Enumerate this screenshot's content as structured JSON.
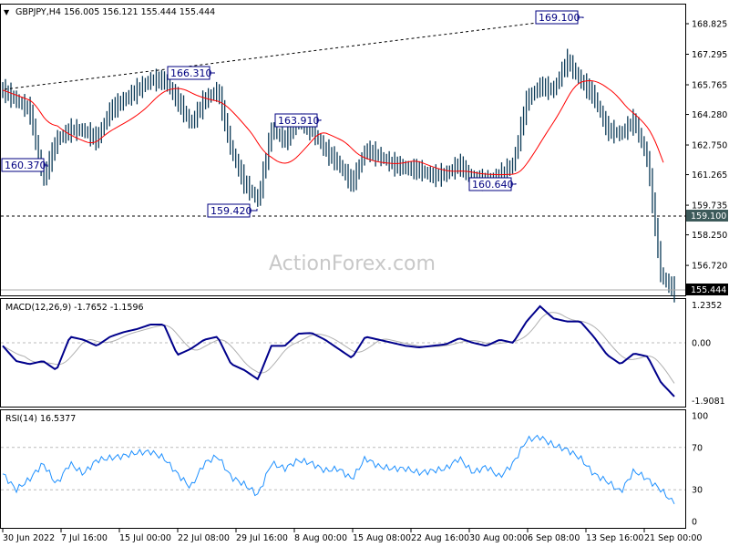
{
  "header": {
    "symbol": "GBPJPY,H4",
    "ohlc": "156.005 156.121 155.444 155.444",
    "full": "GBPJPY,H4  156.005 156.121 155.444 155.444"
  },
  "watermark": "ActionForex.com",
  "colors": {
    "bars": "#0b3a57",
    "ma": "#ff0000",
    "macd": "#00008b",
    "signal": "#b0b0b0",
    "rsi": "#1e90ff",
    "label_box": "#000080"
  },
  "chart_data": [
    {
      "type": "bar",
      "title": "GBPJPY,H4",
      "y_ticks": [
        "168.825",
        "167.295",
        "165.765",
        "164.280",
        "162.750",
        "161.265",
        "159.735",
        "158.250",
        "156.720"
      ],
      "y_tick_values": [
        168.825,
        167.295,
        165.765,
        164.28,
        162.75,
        161.265,
        159.735,
        158.25,
        156.72
      ],
      "ylim": [
        155.2,
        169.5
      ],
      "close": [
        165.5,
        165,
        164.5,
        161,
        163,
        163.5,
        163.5,
        163,
        164.5,
        165,
        165.5,
        166,
        166,
        165,
        163.8,
        165,
        165.5,
        162.5,
        160.8,
        160,
        163.5,
        163,
        164,
        163.5,
        162.5,
        161.8,
        160.8,
        162.5,
        162.2,
        161.8,
        161.6,
        161.5,
        161.2,
        161.3,
        161.8,
        161,
        161,
        161.2,
        161.8,
        165,
        165.7,
        165.5,
        167,
        166,
        165.2,
        163.5,
        163.3,
        164,
        162,
        156.2,
        155.444
      ],
      "annotations": [
        "169.100",
        "166.310",
        "163.910",
        "160.370",
        "159.420",
        "160.640"
      ],
      "horizontal_line": "159.100",
      "last_price": "155.444",
      "trendline": "dotted resistance from 30 Jun through 166.310 to 169.100"
    },
    {
      "type": "line",
      "title": "MACD(12,26,9) -1.7652 -1.1596",
      "y_ticks": [
        "1.2352",
        "0.00",
        "-1.9081"
      ],
      "ylim": [
        -1.9081,
        1.2352
      ],
      "macd": [
        -0.1,
        -0.6,
        -0.7,
        -0.6,
        -0.9,
        0.2,
        0.1,
        -0.1,
        0.2,
        0.35,
        0.45,
        0.6,
        0.6,
        -0.4,
        -0.2,
        0.1,
        0.2,
        -0.7,
        -0.9,
        -1.2,
        -0.1,
        -0.1,
        0.3,
        0.32,
        0.1,
        -0.2,
        -0.5,
        0.2,
        0.1,
        0.0,
        -0.1,
        -0.15,
        -0.1,
        -0.05,
        0.15,
        0.0,
        -0.1,
        0.1,
        0.0,
        0.7,
        1.2,
        0.8,
        0.7,
        0.7,
        0.2,
        -0.4,
        -0.7,
        -0.35,
        -0.45,
        -1.3,
        -1.7652
      ],
      "signal_last": -1.1596
    },
    {
      "type": "line",
      "title": "RSI(14) 16.5377",
      "y_ticks": [
        "100",
        "70",
        "30",
        "0"
      ],
      "ylim": [
        0,
        100
      ],
      "levels": [
        70,
        30
      ],
      "rsi": [
        45,
        30,
        40,
        55,
        35,
        55,
        45,
        58,
        60,
        62,
        65,
        66,
        60,
        45,
        32,
        55,
        62,
        42,
        35,
        25,
        55,
        50,
        58,
        55,
        48,
        50,
        40,
        60,
        52,
        50,
        50,
        46,
        48,
        50,
        60,
        46,
        52,
        42,
        55,
        77,
        80,
        72,
        68,
        60,
        45,
        38,
        28,
        48,
        40,
        30,
        16.5377
      ]
    }
  ],
  "x_ticks": [
    "30 Jun 2022",
    "7 Jul 16:00",
    "15 Jul 00:00",
    "22 Jul 08:00",
    "29 Jul 16:00",
    "8 Aug 00:00",
    "15 Aug 08:00",
    "22 Aug 16:00",
    "30 Aug 00:00",
    "6 Sep 08:00",
    "13 Sep 16:00",
    "21 Sep 00:00"
  ]
}
